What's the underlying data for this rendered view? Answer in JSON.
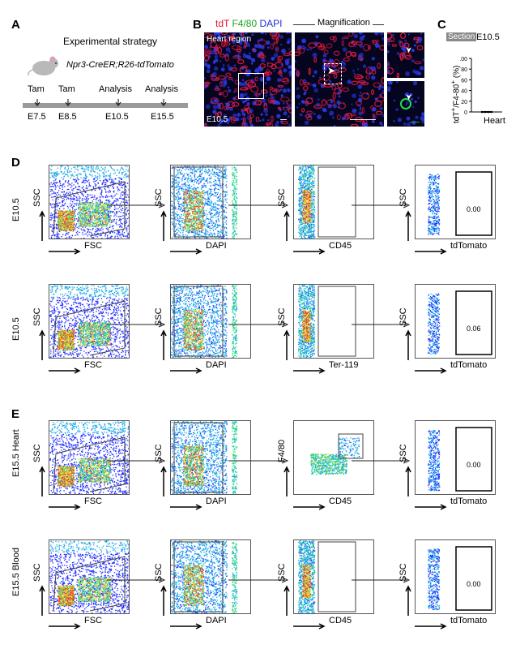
{
  "panels": {
    "A": {
      "letter": "A",
      "title": "Experimental strategy",
      "genotype": "Npr3-CreER;R26-tdTomato",
      "events": [
        {
          "label": "Tam",
          "time": "E7.5"
        },
        {
          "label": "Tam",
          "time": "E8.5"
        },
        {
          "label": "Analysis",
          "time": "E10.5"
        },
        {
          "label": "Analysis",
          "time": "E15.5"
        }
      ],
      "mouse_icon": "mouse-icon"
    },
    "B": {
      "letter": "B",
      "channels": [
        {
          "name": "tdT",
          "color": "#e8102a"
        },
        {
          "name": "F4/80",
          "color": "#1aa31a"
        },
        {
          "name": "DAPI",
          "color": "#1f2fd6"
        }
      ],
      "heart_region": "Heart region",
      "stage": "E10.5",
      "magnification": "Magnification"
    },
    "C": {
      "letter": "C",
      "section_badge": "Section",
      "stage": "E10.5",
      "ylabel": "tdT+/F4-80+ (%)",
      "ylabel_main": "tdT",
      "ylabel_sup1": "+",
      "ylabel_mid": "/F4-80",
      "ylabel_sup2": "+",
      "ylabel_unit": " (%)",
      "ticks": [
        "100",
        "80",
        "60",
        "40",
        "20",
        "0"
      ],
      "xlabel": "Heart"
    },
    "D": {
      "letter": "D",
      "rows": [
        {
          "row_label": "E10.5",
          "plots": [
            {
              "x": "FSC",
              "y": "SSC",
              "value": ""
            },
            {
              "x": "DAPI",
              "y": "SSC",
              "value": ""
            },
            {
              "x": "CD45",
              "y": "SSC",
              "value": ""
            },
            {
              "x": "tdTomato",
              "y": "SSC",
              "value": "0.00"
            }
          ]
        },
        {
          "row_label": "E10.5",
          "plots": [
            {
              "x": "FSC",
              "y": "SSC",
              "value": ""
            },
            {
              "x": "DAPI",
              "y": "SSC",
              "value": ""
            },
            {
              "x": "Ter-119",
              "y": "SSC",
              "value": ""
            },
            {
              "x": "tdTomato",
              "y": "SSC",
              "value": "0.06"
            }
          ]
        }
      ]
    },
    "E": {
      "letter": "E",
      "rows": [
        {
          "row_label": "E15.5",
          "tissue": "Heart",
          "plots": [
            {
              "x": "FSC",
              "y": "SSC",
              "value": ""
            },
            {
              "x": "DAPI",
              "y": "SSC",
              "value": ""
            },
            {
              "x": "CD45",
              "y": "F4/80",
              "value": ""
            },
            {
              "x": "tdTomato",
              "y": "SSC",
              "value": "0.00"
            }
          ]
        },
        {
          "row_label": "E15.5",
          "tissue": "Blood",
          "plots": [
            {
              "x": "FSC",
              "y": "SSC",
              "value": ""
            },
            {
              "x": "DAPI",
              "y": "SSC",
              "value": ""
            },
            {
              "x": "CD45",
              "y": "SSC",
              "value": ""
            },
            {
              "x": "tdTomato",
              "y": "SSC",
              "value": "0.00"
            }
          ]
        }
      ]
    }
  },
  "colors": {
    "timeline": "#9a9a9a",
    "density_low": "#1a1aff",
    "density_mid": "#20d0a0",
    "density_high": "#ff3010"
  }
}
